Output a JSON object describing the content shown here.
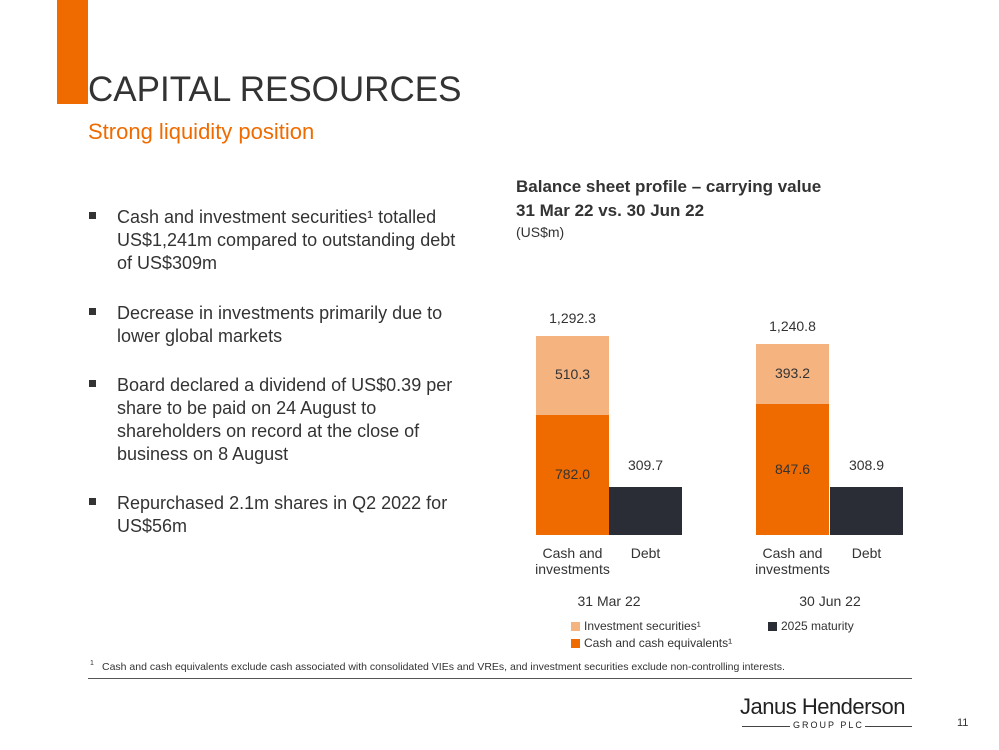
{
  "slide": {
    "title": "CAPITAL RESOURCES",
    "subtitle": "Strong liquidity position",
    "bullets": [
      "Cash and investment securities¹ totalled US$1,241m compared to outstanding debt of US$309m",
      "Decrease in investments primarily due to lower global markets",
      "Board declared a dividend of US$0.39 per share to be paid on 24 August to shareholders on record at the close of business on 8 August",
      "Repurchased 2.1m shares in Q2 2022 for US$56m"
    ],
    "footnote": {
      "marker": "1",
      "text": "Cash and cash equivalents exclude cash associated with consolidated VIEs and VREs, and investment securities exclude non-controlling interests."
    },
    "logo": {
      "name": "Janus Henderson",
      "tagline": "GROUP PLC"
    },
    "page_number": "11"
  },
  "chart_data": {
    "type": "stacked_bar",
    "title": "Balance sheet profile – carrying value",
    "title_line2": "31 Mar 22 vs. 30 Jun 22",
    "unit_label": "(US$m)",
    "categories": [
      "Cash and investments",
      "Debt",
      "Cash and investments",
      "Debt"
    ],
    "groups": [
      "31 Mar 22",
      "30 Jun 22"
    ],
    "series": [
      {
        "name": "Cash and cash equivalents¹",
        "color": "#ef6b00",
        "values": [
          782.0,
          null,
          847.6,
          null
        ],
        "value_labels": [
          "782.0",
          null,
          "847.6",
          null
        ]
      },
      {
        "name": "Investment securities¹",
        "color": "#f5b380",
        "values": [
          510.3,
          null,
          393.2,
          null
        ],
        "value_labels": [
          "510.3",
          null,
          "393.2",
          null
        ]
      },
      {
        "name": "2025 maturity",
        "color": "#2a2d36",
        "values": [
          null,
          309.7,
          null,
          308.9
        ],
        "value_labels": [
          null,
          "309.7",
          null,
          "308.9"
        ]
      }
    ],
    "totals": [
      1292.3,
      null,
      1240.8,
      null
    ],
    "total_labels": [
      "1,292.3",
      null,
      "1,240.8",
      null
    ],
    "ylim": [
      0,
      1400
    ]
  }
}
